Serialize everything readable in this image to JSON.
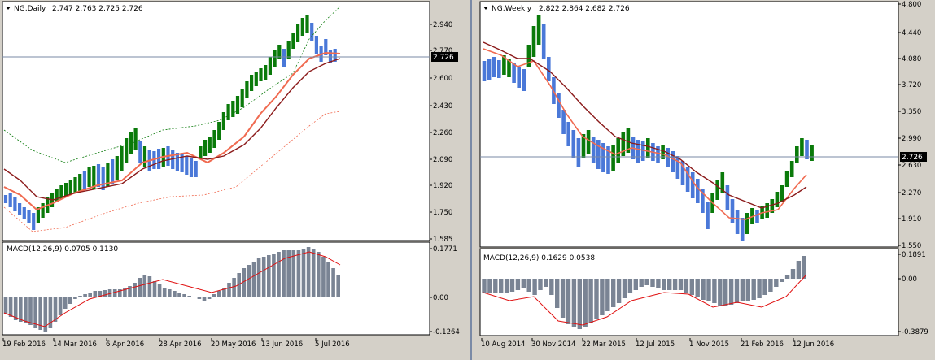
{
  "daily": {
    "title": "NG,Daily",
    "ohlc": "2.747 2.763 2.725 2.726",
    "price_label": "2.726",
    "price_axis": [
      "2.940",
      "2.770",
      "2.600",
      "2.430",
      "2.260",
      "2.090",
      "1.920",
      "1.750",
      "1.585"
    ],
    "macd_title": "MACD(12,26,9) 0.0705 0.1130",
    "macd_axis": [
      "0.1771",
      "0.00",
      "-0.1264"
    ],
    "dates": [
      "19 Feb 2016",
      "14 Mar 2016",
      "6 Apr 2016",
      "28 Apr 2016",
      "20 May 2016",
      "13 Jun 2016",
      "5 Jul 2016"
    ]
  },
  "weekly": {
    "title": "NG,Weekly",
    "ohlc": "2.822 2.864 2.682 2.726",
    "price_label": "2.726",
    "price_axis": [
      "4.800",
      "4.440",
      "4.080",
      "3.720",
      "3.350",
      "2.990",
      "2.630",
      "2.270",
      "1.910",
      "1.550"
    ],
    "macd_title": "MACD(12,26,9) 0.1629 0.0538",
    "macd_axis": [
      "0.1891",
      "0.00",
      "-0.3879"
    ],
    "dates": [
      "10 Aug 2014",
      "30 Nov 2014",
      "22 Mar 2015",
      "12 Jul 2015",
      "1 Nov 2015",
      "21 Feb 2016",
      "12 Jun 2016"
    ]
  },
  "colors": {
    "bull": "#0a7a0a",
    "bear": "#4a78d8",
    "neutral": "#f07a5a",
    "ma_fast": "#f06a50",
    "ma_slow": "#8b1a1a",
    "macd_hist": "#7a8494",
    "macd_signal": "#e01010",
    "band_upper": "#0a7a0a",
    "band_lower": "#f06a50"
  }
}
